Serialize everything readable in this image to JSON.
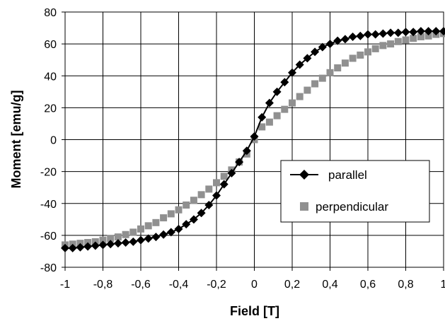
{
  "chart_data": {
    "type": "scatter",
    "xlabel": "Field [T]",
    "ylabel": "Moment [emu/g]",
    "xlim": [
      -1,
      1
    ],
    "ylim": [
      -80,
      80
    ],
    "x_ticks": [
      -1,
      -0.8,
      -0.6,
      -0.4,
      -0.2,
      0,
      0.2,
      0.4,
      0.6,
      0.8,
      1
    ],
    "x_tick_labels": [
      "-1",
      "-0,8",
      "-0,6",
      "-0,4",
      "-0,2",
      "0",
      "0,2",
      "0,4",
      "0,6",
      "0,8",
      "1"
    ],
    "y_ticks": [
      -80,
      -60,
      -40,
      -20,
      0,
      20,
      40,
      60,
      80
    ],
    "y_tick_labels": [
      "-80",
      "-60",
      "-40",
      "-20",
      "0",
      "20",
      "40",
      "60",
      "80"
    ],
    "grid": true,
    "legend_position": "center-right",
    "series": [
      {
        "name": "parallel",
        "color": "#000000",
        "marker": "diamond",
        "line": true,
        "x": [
          -1,
          -0.96,
          -0.92,
          -0.88,
          -0.84,
          -0.8,
          -0.76,
          -0.72,
          -0.68,
          -0.64,
          -0.6,
          -0.56,
          -0.52,
          -0.48,
          -0.44,
          -0.4,
          -0.36,
          -0.32,
          -0.28,
          -0.24,
          -0.2,
          -0.16,
          -0.12,
          -0.08,
          -0.04,
          0,
          0.04,
          0.08,
          0.12,
          0.16,
          0.2,
          0.24,
          0.28,
          0.32,
          0.36,
          0.4,
          0.44,
          0.48,
          0.52,
          0.56,
          0.6,
          0.64,
          0.68,
          0.72,
          0.76,
          0.8,
          0.84,
          0.88,
          0.92,
          0.96,
          1
        ],
        "y": [
          -68,
          -68,
          -67.5,
          -67,
          -66.5,
          -66,
          -65.5,
          -65,
          -64.5,
          -64,
          -63,
          -62,
          -61,
          -59.5,
          -58,
          -56,
          -53,
          -50,
          -46,
          -41,
          -35,
          -28,
          -21,
          -14,
          -7,
          2,
          14,
          23,
          30,
          36,
          42,
          47,
          51,
          55,
          58,
          60,
          62,
          63,
          64.5,
          65,
          66,
          66,
          66.5,
          67,
          67,
          67.5,
          67.5,
          68,
          68,
          68,
          68
        ]
      },
      {
        "name": "perpendicular",
        "color": "#909090",
        "marker": "square",
        "line": false,
        "x": [
          -1,
          -0.96,
          -0.92,
          -0.88,
          -0.84,
          -0.8,
          -0.76,
          -0.72,
          -0.68,
          -0.64,
          -0.6,
          -0.56,
          -0.52,
          -0.48,
          -0.44,
          -0.4,
          -0.36,
          -0.32,
          -0.28,
          -0.24,
          -0.2,
          -0.16,
          -0.12,
          -0.08,
          -0.04,
          0,
          0.04,
          0.08,
          0.12,
          0.16,
          0.2,
          0.24,
          0.28,
          0.32,
          0.36,
          0.4,
          0.44,
          0.48,
          0.52,
          0.56,
          0.6,
          0.64,
          0.68,
          0.72,
          0.76,
          0.8,
          0.84,
          0.88,
          0.92,
          0.96,
          1
        ],
        "y": [
          -66,
          -65.5,
          -65,
          -64.5,
          -64,
          -63,
          -62,
          -61,
          -59.5,
          -58,
          -56,
          -54,
          -52,
          -49,
          -46.5,
          -44,
          -41,
          -38,
          -34.5,
          -31,
          -27,
          -23,
          -19,
          -14,
          -9,
          0,
          8,
          11,
          15,
          19,
          23,
          27,
          31,
          35,
          38.5,
          42,
          45,
          48,
          51,
          53,
          55,
          57,
          59,
          60,
          61.5,
          62.5,
          63.5,
          64.5,
          65,
          66,
          66.5
        ]
      }
    ]
  }
}
